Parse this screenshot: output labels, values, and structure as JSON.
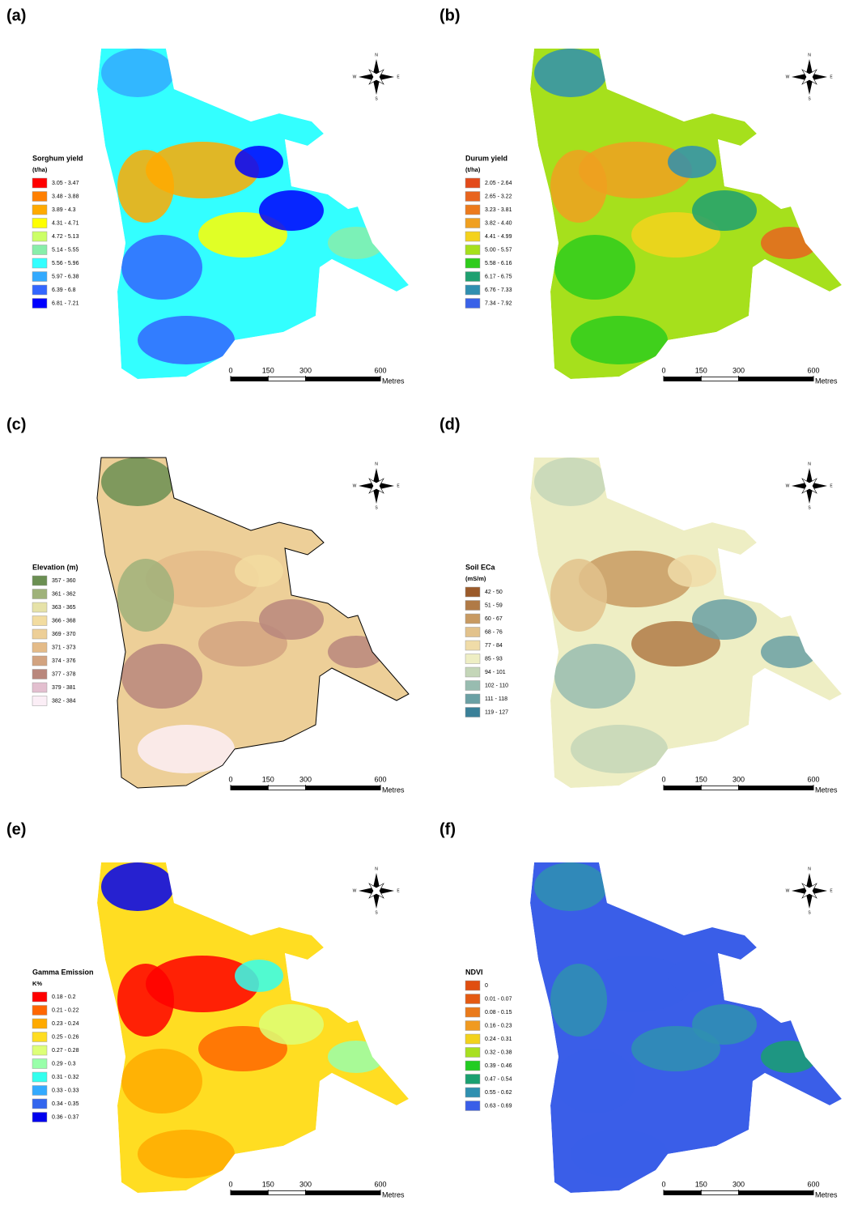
{
  "compass": {
    "north": "N",
    "east": "E",
    "south": "S",
    "west": "W"
  },
  "scale_bar": {
    "ticks": [
      0,
      150,
      300,
      600
    ],
    "unit": "Metres"
  },
  "panels": [
    {
      "label": "(a)",
      "legend_title": "Sorghum yield",
      "legend_unit": "(t/ha)",
      "legend": [
        {
          "label": "3.05 - 3.47",
          "color": "#ff0000"
        },
        {
          "label": "3.48 - 3.88",
          "color": "#ff7f00"
        },
        {
          "label": "3.89 - 4.3",
          "color": "#ffaa00"
        },
        {
          "label": "4.31 - 4.71",
          "color": "#ffff00"
        },
        {
          "label": "4.72 - 5.13",
          "color": "#ccff66"
        },
        {
          "label": "5.14 - 5.55",
          "color": "#88eeaa"
        },
        {
          "label": "5.56 - 5.96",
          "color": "#33ffff"
        },
        {
          "label": "5.97 - 6.38",
          "color": "#33aaff"
        },
        {
          "label": "6.39 - 6.8",
          "color": "#3366ff"
        },
        {
          "label": "6.81 - 7.21",
          "color": "#0000ff"
        }
      ]
    },
    {
      "label": "(b)",
      "legend_title": "Durum yield",
      "legend_unit": "(t/ha)",
      "legend": [
        {
          "label": "2.05 - 2.64",
          "color": "#e34a1a"
        },
        {
          "label": "2.65 - 3.22",
          "color": "#e8641e"
        },
        {
          "label": "3.23 - 3.81",
          "color": "#ec7a1c"
        },
        {
          "label": "3.82 - 4.40",
          "color": "#f0a020"
        },
        {
          "label": "4.41 - 4.99",
          "color": "#f4d21c"
        },
        {
          "label": "5.00 - 5.57",
          "color": "#a6e01c"
        },
        {
          "label": "5.58 - 6.16",
          "color": "#2ecc1c"
        },
        {
          "label": "6.17 - 6.75",
          "color": "#1fa070"
        },
        {
          "label": "6.76 - 7.33",
          "color": "#2f8fb0"
        },
        {
          "label": "7.34 - 7.92",
          "color": "#3a62e8"
        }
      ]
    },
    {
      "label": "(c)",
      "legend_title": "Elevation (m)",
      "legend": [
        {
          "label": "357 - 360",
          "color": "#6b8f52"
        },
        {
          "label": "361 - 362",
          "color": "#9fb27a"
        },
        {
          "label": "363 - 365",
          "color": "#e6e2a8"
        },
        {
          "label": "366 - 368",
          "color": "#f2dca0"
        },
        {
          "label": "369 - 370",
          "color": "#edcf98"
        },
        {
          "label": "371 - 373",
          "color": "#e4bb88"
        },
        {
          "label": "374 - 376",
          "color": "#d2a380"
        },
        {
          "label": "377 - 378",
          "color": "#b9877c"
        },
        {
          "label": "379 - 381",
          "color": "#e3bfcf"
        },
        {
          "label": "382 - 384",
          "color": "#fbeef6"
        }
      ]
    },
    {
      "label": "(d)",
      "legend_title": "Soil ECa",
      "legend_unit": "(mS/m)",
      "legend": [
        {
          "label": "42 - 50",
          "color": "#9b5a2a"
        },
        {
          "label": "51 - 59",
          "color": "#b07a46"
        },
        {
          "label": "60 - 67",
          "color": "#c89a62"
        },
        {
          "label": "68 - 76",
          "color": "#e2c28c"
        },
        {
          "label": "77 - 84",
          "color": "#f0dca8"
        },
        {
          "label": "85 - 93",
          "color": "#eeeec4"
        },
        {
          "label": "94 - 101",
          "color": "#c4d6b8"
        },
        {
          "label": "102 - 110",
          "color": "#98bcb0"
        },
        {
          "label": "111 - 118",
          "color": "#6aa0a4"
        },
        {
          "label": "119 - 127",
          "color": "#3a8098"
        }
      ]
    },
    {
      "label": "(e)",
      "legend_title": "Gamma Emission",
      "legend_unit": "K%",
      "legend": [
        {
          "label": "0.18 - 0.2",
          "color": "#ff0000"
        },
        {
          "label": "0.21 - 0.22",
          "color": "#ff6600"
        },
        {
          "label": "0.23 - 0.24",
          "color": "#ffaa00"
        },
        {
          "label": "0.25 - 0.26",
          "color": "#ffdd22"
        },
        {
          "label": "0.27 - 0.28",
          "color": "#ddff77"
        },
        {
          "label": "0.29 - 0.3",
          "color": "#99ffaa"
        },
        {
          "label": "0.31 - 0.32",
          "color": "#33ffee"
        },
        {
          "label": "0.33 - 0.33",
          "color": "#33aaff"
        },
        {
          "label": "0.34 - 0.35",
          "color": "#3366ee"
        },
        {
          "label": "0.36 - 0.37",
          "color": "#0000ee"
        }
      ]
    },
    {
      "label": "(f)",
      "legend_title": "NDVI",
      "legend": [
        {
          "label": "0",
          "color": "#e04e10"
        },
        {
          "label": "0.01 - 0.07",
          "color": "#e45a12"
        },
        {
          "label": "0.08 - 0.15",
          "color": "#ea7a1a"
        },
        {
          "label": "0.16 - 0.23",
          "color": "#f09a20"
        },
        {
          "label": "0.24 - 0.31",
          "color": "#f2d21c"
        },
        {
          "label": "0.32 - 0.38",
          "color": "#a8e020"
        },
        {
          "label": "0.39 - 0.46",
          "color": "#22cc22"
        },
        {
          "label": "0.47 - 0.54",
          "color": "#1aa070"
        },
        {
          "label": "0.55 - 0.62",
          "color": "#2f90b0"
        },
        {
          "label": "0.63 - 0.69",
          "color": "#3a5ee8"
        }
      ]
    }
  ]
}
